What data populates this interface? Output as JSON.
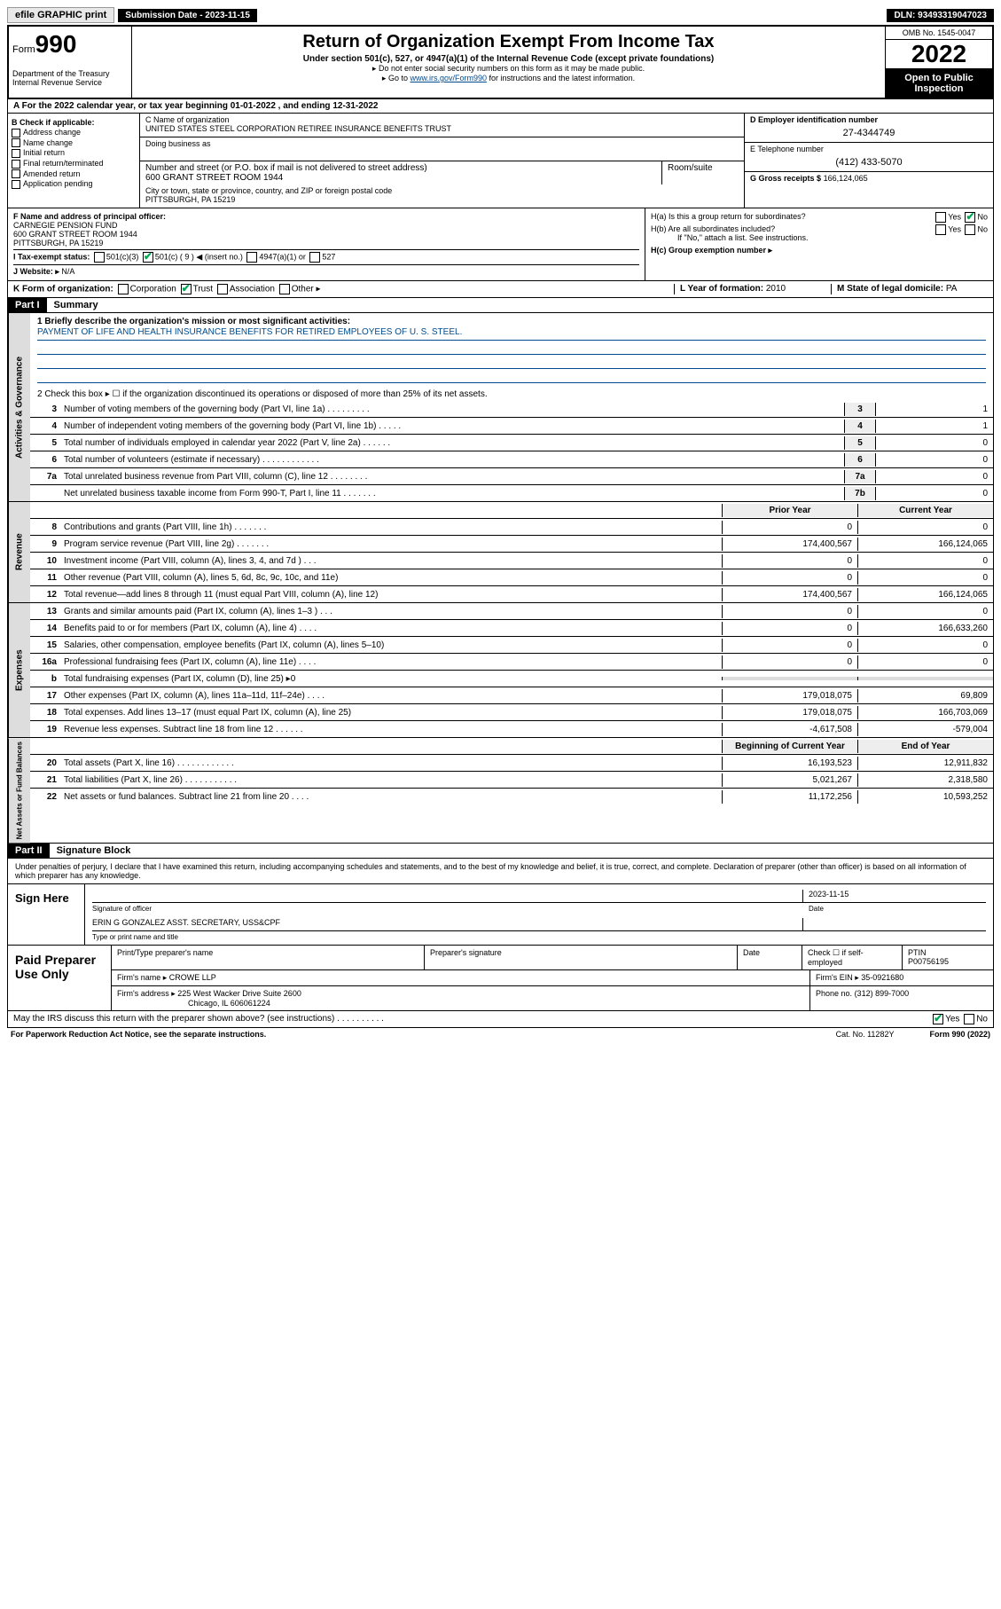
{
  "topbar": {
    "efile": "efile GRAPHIC print",
    "subdate_label": "Submission Date - 2023-11-15",
    "dln": "DLN: 93493319047023"
  },
  "header": {
    "form_prefix": "Form",
    "form_number": "990",
    "title": "Return of Organization Exempt From Income Tax",
    "subtitle": "Under section 501(c), 527, or 4947(a)(1) of the Internal Revenue Code (except private foundations)",
    "note1": "▸ Do not enter social security numbers on this form as it may be made public.",
    "note2_pre": "▸ Go to ",
    "note2_link": "www.irs.gov/Form990",
    "note2_post": " for instructions and the latest information.",
    "dept": "Department of the Treasury\nInternal Revenue Service",
    "omb": "OMB No. 1545-0047",
    "year": "2022",
    "open": "Open to Public Inspection"
  },
  "row_a": "A For the 2022 calendar year, or tax year beginning 01-01-2022   , and ending 12-31-2022",
  "col_b": {
    "label": "B Check if applicable:",
    "items": [
      "Address change",
      "Name change",
      "Initial return",
      "Final return/terminated",
      "Amended return",
      "Application pending"
    ]
  },
  "col_c": {
    "name_label": "C Name of organization",
    "name": "UNITED STATES STEEL CORPORATION RETIREE INSURANCE BENEFITS TRUST",
    "dba_label": "Doing business as",
    "dba": "",
    "addr_label": "Number and street (or P.O. box if mail is not delivered to street address)",
    "room_label": "Room/suite",
    "addr": "600 GRANT STREET ROOM 1944",
    "city_label": "City or town, state or province, country, and ZIP or foreign postal code",
    "city": "PITTSBURGH, PA  15219"
  },
  "col_de": {
    "d_label": "D Employer identification number",
    "d_val": "27-4344749",
    "e_label": "E Telephone number",
    "e_val": "(412) 433-5070",
    "g_label": "G Gross receipts $",
    "g_val": "166,124,065"
  },
  "row_f": {
    "f_label": "F Name and address of principal officer:",
    "f_name": "CARNEGIE PENSION FUND",
    "f_addr": "600 GRANT STREET ROOM 1944\nPITTSBURGH, PA  15219",
    "i_label": "I   Tax-exempt status:",
    "i_opts": [
      "501(c)(3)",
      "501(c) ( 9 ) ◀ (insert no.)",
      "4947(a)(1) or",
      "527"
    ],
    "j_label": "J   Website: ▸",
    "j_val": "N/A",
    "ha": "H(a)  Is this a group return for subordinates?",
    "hb": "H(b)  Are all subordinates included?",
    "hb_note": "If \"No,\" attach a list. See instructions.",
    "hc": "H(c)  Group exemption number ▸"
  },
  "row_k": {
    "k_label": "K Form of organization:",
    "k_opts": [
      "Corporation",
      "Trust",
      "Association",
      "Other ▸"
    ],
    "l_label": "L Year of formation:",
    "l_val": "2010",
    "m_label": "M State of legal domicile:",
    "m_val": "PA"
  },
  "part1": {
    "header": "Part I",
    "title": "Summary",
    "line1_label": "1  Briefly describe the organization's mission or most significant activities:",
    "mission": "PAYMENT OF LIFE AND HEALTH INSURANCE BENEFITS FOR RETIRED EMPLOYEES OF U. S. STEEL.",
    "line2": "2   Check this box ▸ ☐  if the organization discontinued its operations or disposed of more than 25% of its net assets.",
    "governance": [
      {
        "n": "3",
        "d": "Number of voting members of the governing body (Part VI, line 1a)   .    .    .    .    .    .    .    .    .",
        "b": "3",
        "v": "1"
      },
      {
        "n": "4",
        "d": "Number of independent voting members of the governing body (Part VI, line 1b)    .    .    .    .    .",
        "b": "4",
        "v": "1"
      },
      {
        "n": "5",
        "d": "Total number of individuals employed in calendar year 2022 (Part V, line 2a)    .    .    .    .    .    .",
        "b": "5",
        "v": "0"
      },
      {
        "n": "6",
        "d": "Total number of volunteers (estimate if necessary)    .    .    .    .    .    .    .    .    .    .    .    .",
        "b": "6",
        "v": "0"
      },
      {
        "n": "7a",
        "d": "Total unrelated business revenue from Part VIII, column (C), line 12    .    .    .    .    .    .    .    .",
        "b": "7a",
        "v": "0"
      },
      {
        "n": "",
        "d": "Net unrelated business taxable income from Form 990-T, Part I, line 11    .    .    .    .    .    .    .",
        "b": "7b",
        "v": "0"
      }
    ],
    "cols": {
      "prior": "Prior Year",
      "current": "Current Year"
    },
    "revenue": [
      {
        "n": "8",
        "d": "Contributions and grants (Part VIII, line 1h)    .    .    .    .    .    .    .",
        "p": "0",
        "c": "0"
      },
      {
        "n": "9",
        "d": "Program service revenue (Part VIII, line 2g)    .    .    .    .    .    .    .",
        "p": "174,400,567",
        "c": "166,124,065"
      },
      {
        "n": "10",
        "d": "Investment income (Part VIII, column (A), lines 3, 4, and 7d )    .    .    .",
        "p": "0",
        "c": "0"
      },
      {
        "n": "11",
        "d": "Other revenue (Part VIII, column (A), lines 5, 6d, 8c, 9c, 10c, and 11e)",
        "p": "0",
        "c": "0"
      },
      {
        "n": "12",
        "d": "Total revenue—add lines 8 through 11 (must equal Part VIII, column (A), line 12)",
        "p": "174,400,567",
        "c": "166,124,065"
      }
    ],
    "expenses": [
      {
        "n": "13",
        "d": "Grants and similar amounts paid (Part IX, column (A), lines 1–3 )    .    .    .",
        "p": "0",
        "c": "0"
      },
      {
        "n": "14",
        "d": "Benefits paid to or for members (Part IX, column (A), line 4)    .    .    .    .",
        "p": "0",
        "c": "166,633,260"
      },
      {
        "n": "15",
        "d": "Salaries, other compensation, employee benefits (Part IX, column (A), lines 5–10)",
        "p": "0",
        "c": "0"
      },
      {
        "n": "16a",
        "d": "Professional fundraising fees (Part IX, column (A), line 11e)    .    .    .    .",
        "p": "0",
        "c": "0"
      },
      {
        "n": "b",
        "d": "Total fundraising expenses (Part IX, column (D), line 25) ▸0",
        "p": "",
        "c": "",
        "shade": true
      },
      {
        "n": "17",
        "d": "Other expenses (Part IX, column (A), lines 11a–11d, 11f–24e)    .    .    .    .",
        "p": "179,018,075",
        "c": "69,809"
      },
      {
        "n": "18",
        "d": "Total expenses. Add lines 13–17 (must equal Part IX, column (A), line 25)",
        "p": "179,018,075",
        "c": "166,703,069"
      },
      {
        "n": "19",
        "d": "Revenue less expenses. Subtract line 18 from line 12    .    .    .    .    .    .",
        "p": "-4,617,508",
        "c": "-579,004"
      }
    ],
    "netcols": {
      "begin": "Beginning of Current Year",
      "end": "End of Year"
    },
    "netassets": [
      {
        "n": "20",
        "d": "Total assets (Part X, line 16)    .    .    .    .    .    .    .    .    .    .    .    .",
        "p": "16,193,523",
        "c": "12,911,832"
      },
      {
        "n": "21",
        "d": "Total liabilities (Part X, line 26)    .    .    .    .    .    .    .    .    .    .    .",
        "p": "5,021,267",
        "c": "2,318,580"
      },
      {
        "n": "22",
        "d": "Net assets or fund balances. Subtract line 21 from line 20    .    .    .    .",
        "p": "11,172,256",
        "c": "10,593,252"
      }
    ]
  },
  "part2": {
    "header": "Part II",
    "title": "Signature Block",
    "declaration": "Under penalties of perjury, I declare that I have examined this return, including accompanying schedules and statements, and to the best of my knowledge and belief, it is true, correct, and complete. Declaration of preparer (other than officer) is based on all information of which preparer has any knowledge.",
    "sign_here": "Sign Here",
    "sig_officer": "Signature of officer",
    "sig_date_label": "Date",
    "sig_date": "2023-11-15",
    "sig_name": "ERIN G GONZALEZ  ASST. SECRETARY, USS&CPF",
    "sig_name_label": "Type or print name and title"
  },
  "paid": {
    "label": "Paid Preparer Use Only",
    "h_name": "Print/Type preparer's name",
    "h_sig": "Preparer's signature",
    "h_date": "Date",
    "h_check": "Check ☐ if self-employed",
    "h_ptin": "PTIN",
    "ptin": "P00756195",
    "firm_label": "Firm's name   ▸",
    "firm": "CROWE LLP",
    "ein_label": "Firm's EIN ▸",
    "ein": "35-0921680",
    "addr_label": "Firm's address ▸",
    "addr": "225 West Wacker Drive Suite 2600",
    "city": "Chicago, IL  606061224",
    "phone_label": "Phone no.",
    "phone": "(312) 899-7000"
  },
  "discuss": "May the IRS discuss this return with the preparer shown above? (see instructions)    .    .    .    .    .    .    .    .    .    .",
  "footer": {
    "left": "For Paperwork Reduction Act Notice, see the separate instructions.",
    "mid": "Cat. No. 11282Y",
    "right": "Form 990 (2022)"
  }
}
